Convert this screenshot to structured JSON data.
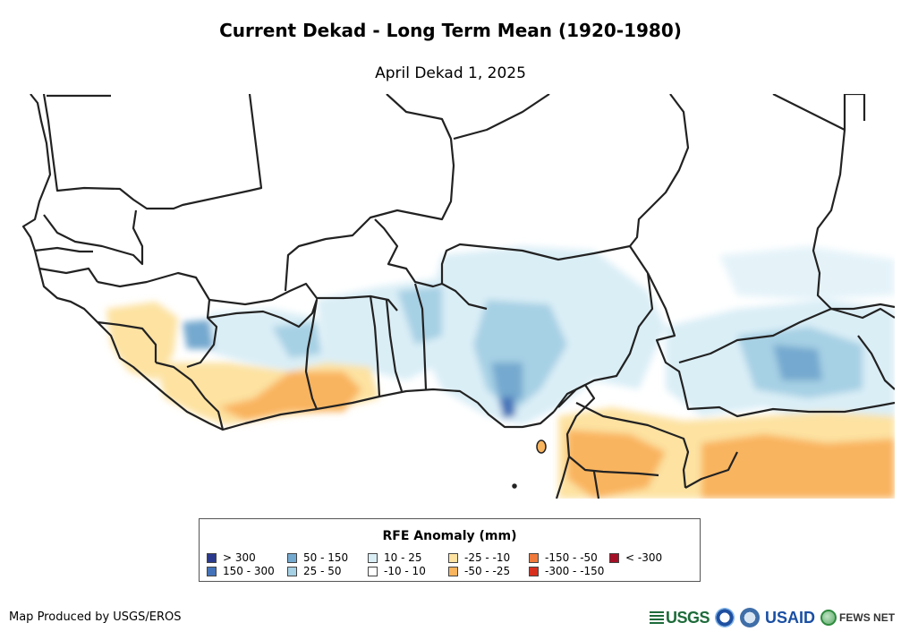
{
  "title": "Current Dekad - Long Term Mean (1920-1980)",
  "subtitle": "April Dekad 1, 2025",
  "legend": {
    "title": "RFE Anomaly (mm)",
    "items": [
      {
        "label": "> 300",
        "color": "#2b3a8c"
      },
      {
        "label": "150 - 300",
        "color": "#4472b8"
      },
      {
        "label": "50 - 150",
        "color": "#74a9cf"
      },
      {
        "label": "25 - 50",
        "color": "#a6d0e4"
      },
      {
        "label": "10 - 25",
        "color": "#daeef6"
      },
      {
        "label": "-10 - 10",
        "color": "#ffffff"
      },
      {
        "label": "-25 - -10",
        "color": "#fde2a1"
      },
      {
        "label": "-50 - -25",
        "color": "#f9b45e"
      },
      {
        "label": "-150 - -50",
        "color": "#ef7a3c"
      },
      {
        "label": "-300 - -150",
        "color": "#d7301f"
      },
      {
        "label": "< -300",
        "color": "#a50f26"
      }
    ]
  },
  "credit": "Map Produced by USGS/EROS",
  "logos": {
    "usgs": "USGS",
    "usaid": "USAID",
    "fews": "FEWS NET"
  }
}
